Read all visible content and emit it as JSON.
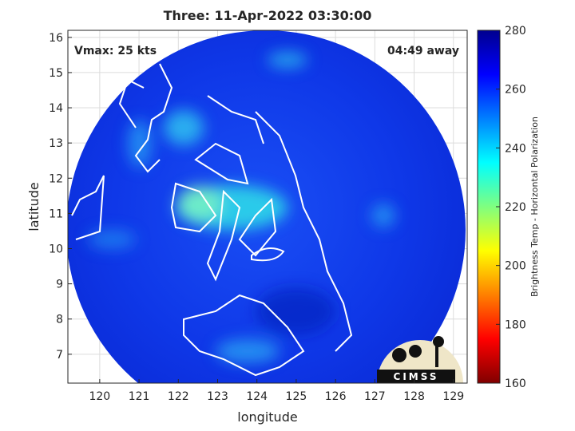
{
  "title": "Three: 11-Apr-2022 03:30:00",
  "annotations": {
    "intensity": "Vmax: 25 kts",
    "time_away": "04:49 away"
  },
  "map": {
    "xlabel": "longitude",
    "ylabel": "latitude",
    "xlim": [
      119.19,
      129.35
    ],
    "ylim": [
      6.18,
      16.2
    ],
    "xticks": [
      120,
      121,
      122,
      123,
      124,
      125,
      126,
      127,
      128,
      129
    ],
    "yticks": [
      7,
      8,
      9,
      10,
      11,
      12,
      13,
      14,
      15,
      16
    ],
    "grid": true
  },
  "colorbar": {
    "label": "Brightness Temp - Horizontal Polarization",
    "lim": [
      160,
      280
    ],
    "ticks": [
      160,
      180,
      200,
      220,
      240,
      260,
      280
    ]
  },
  "logo": "CIMSS"
}
